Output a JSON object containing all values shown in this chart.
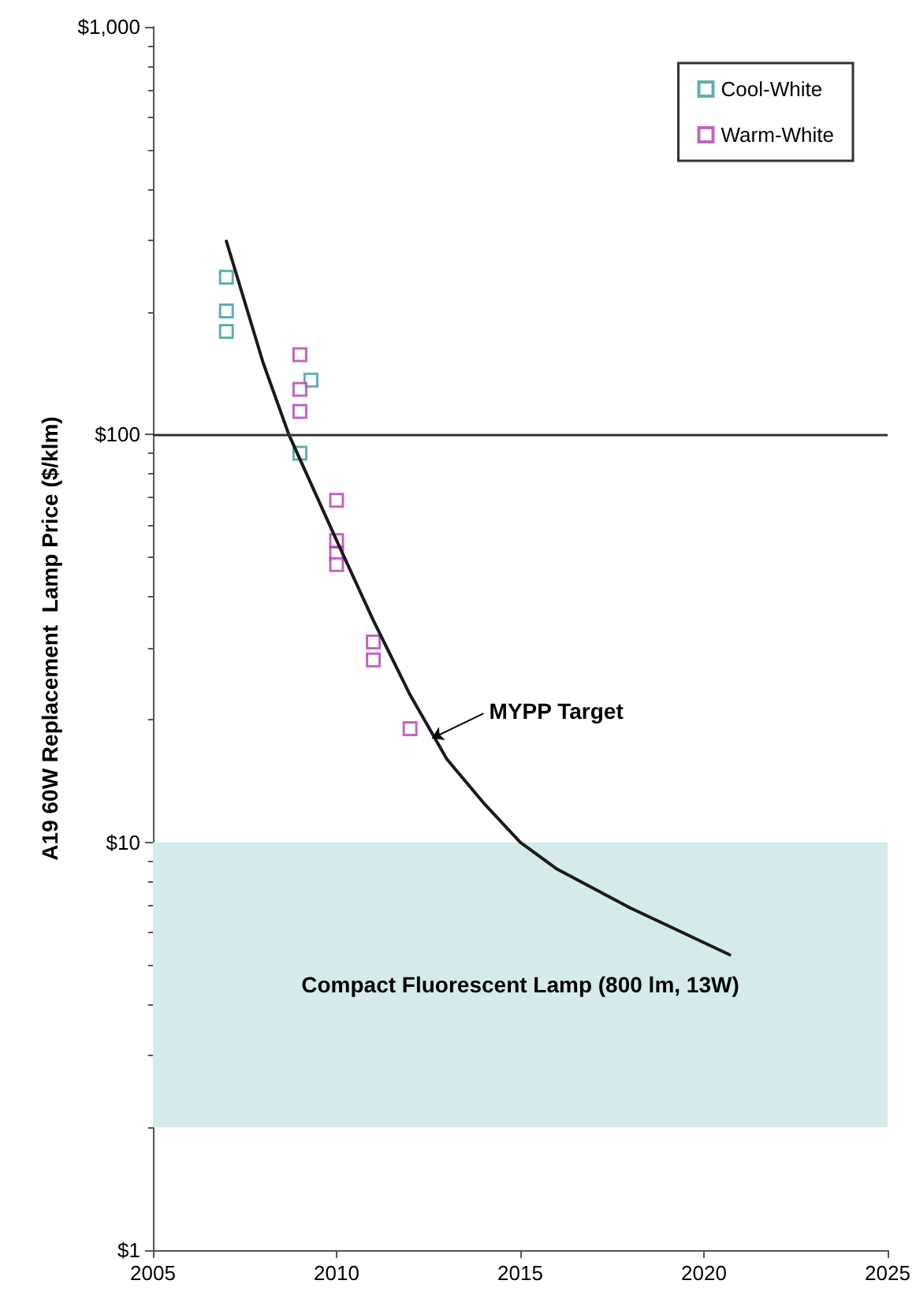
{
  "chart_data": {
    "type": "scatter",
    "ylabel": "A19 60W Replacement  Lamp Price ($/klm)",
    "xlim": [
      2005,
      2025
    ],
    "xticks": [
      2005,
      2010,
      2015,
      2020,
      2025
    ],
    "ylim": [
      1,
      1000
    ],
    "yticks": [
      {
        "value": 1,
        "label": "$1"
      },
      {
        "value": 10,
        "label": "$10"
      },
      {
        "value": 100,
        "label": "$100"
      },
      {
        "value": 1000,
        "label": "$1,000"
      }
    ],
    "log": "y",
    "grid": false,
    "legend": "top right",
    "marker": "square",
    "series": [
      {
        "name": "Cool-White",
        "color": "#3a9a9a",
        "x": [
          2007,
          2007,
          2007,
          2009.3,
          2009
        ],
        "values": [
          243,
          201,
          179,
          136,
          90
        ]
      },
      {
        "name": "Warm-White",
        "color": "#b040b0",
        "x": [
          2009,
          2009,
          2009,
          2010,
          2010,
          2010,
          2010,
          2011,
          2011,
          2012
        ],
        "values": [
          157,
          129,
          114,
          69,
          55,
          51,
          48,
          31,
          28,
          19
        ]
      },
      {
        "type": "line",
        "color": "#1a1a1a",
        "marker": "none",
        "x": [
          2007,
          2008,
          2008.7,
          2010,
          2011,
          2012,
          2013,
          2014,
          2015,
          2016,
          2018,
          2020.7
        ],
        "values": [
          298,
          150,
          100,
          55,
          35,
          23,
          16,
          12.5,
          10,
          8.6,
          6.9,
          5.3
        ]
      }
    ],
    "ref_lines": [
      {
        "axis": "y",
        "value": 100,
        "color": "#333333"
      }
    ],
    "bands": [
      {
        "axis": "y",
        "from": 2,
        "to": 10,
        "label": "Compact Fluorescent Lamp (800 lm, 13W)",
        "color": "#d5eaea"
      }
    ],
    "annotations": [
      {
        "text": "MYPP Target",
        "x": 2012.6,
        "y": 18
      }
    ]
  }
}
